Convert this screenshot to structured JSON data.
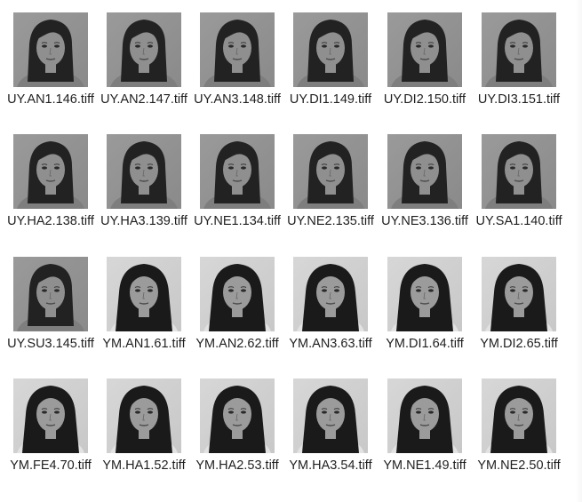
{
  "files": [
    {
      "name": "UY.AN1.146.tiff",
      "subject": "UY"
    },
    {
      "name": "UY.AN2.147.tiff",
      "subject": "UY"
    },
    {
      "name": "UY.AN3.148.tiff",
      "subject": "UY"
    },
    {
      "name": "UY.DI1.149.tiff",
      "subject": "UY"
    },
    {
      "name": "UY.DI2.150.tiff",
      "subject": "UY"
    },
    {
      "name": "UY.DI3.151.tiff",
      "subject": "UY"
    },
    {
      "name": "UY.HA2.138.tiff",
      "subject": "UY"
    },
    {
      "name": "UY.HA3.139.tiff",
      "subject": "UY"
    },
    {
      "name": "UY.NE1.134.tiff",
      "subject": "UY"
    },
    {
      "name": "UY.NE2.135.tiff",
      "subject": "UY"
    },
    {
      "name": "UY.NE3.136.tiff",
      "subject": "UY"
    },
    {
      "name": "UY.SA1.140.tiff",
      "subject": "UY"
    },
    {
      "name": "UY.SU3.145.tiff",
      "subject": "UY"
    },
    {
      "name": "YM.AN1.61.tiff",
      "subject": "YM"
    },
    {
      "name": "YM.AN2.62.tiff",
      "subject": "YM"
    },
    {
      "name": "YM.AN3.63.tiff",
      "subject": "YM"
    },
    {
      "name": "YM.DI1.64.tiff",
      "subject": "YM"
    },
    {
      "name": "YM.DI2.65.tiff",
      "subject": "YM"
    },
    {
      "name": "YM.FE4.70.tiff",
      "subject": "YM"
    },
    {
      "name": "YM.HA1.52.tiff",
      "subject": "YM"
    },
    {
      "name": "YM.HA2.53.tiff",
      "subject": "YM"
    },
    {
      "name": "YM.HA3.54.tiff",
      "subject": "YM"
    },
    {
      "name": "YM.NE1.49.tiff",
      "subject": "YM"
    },
    {
      "name": "YM.NE2.50.tiff",
      "subject": "YM"
    }
  ]
}
